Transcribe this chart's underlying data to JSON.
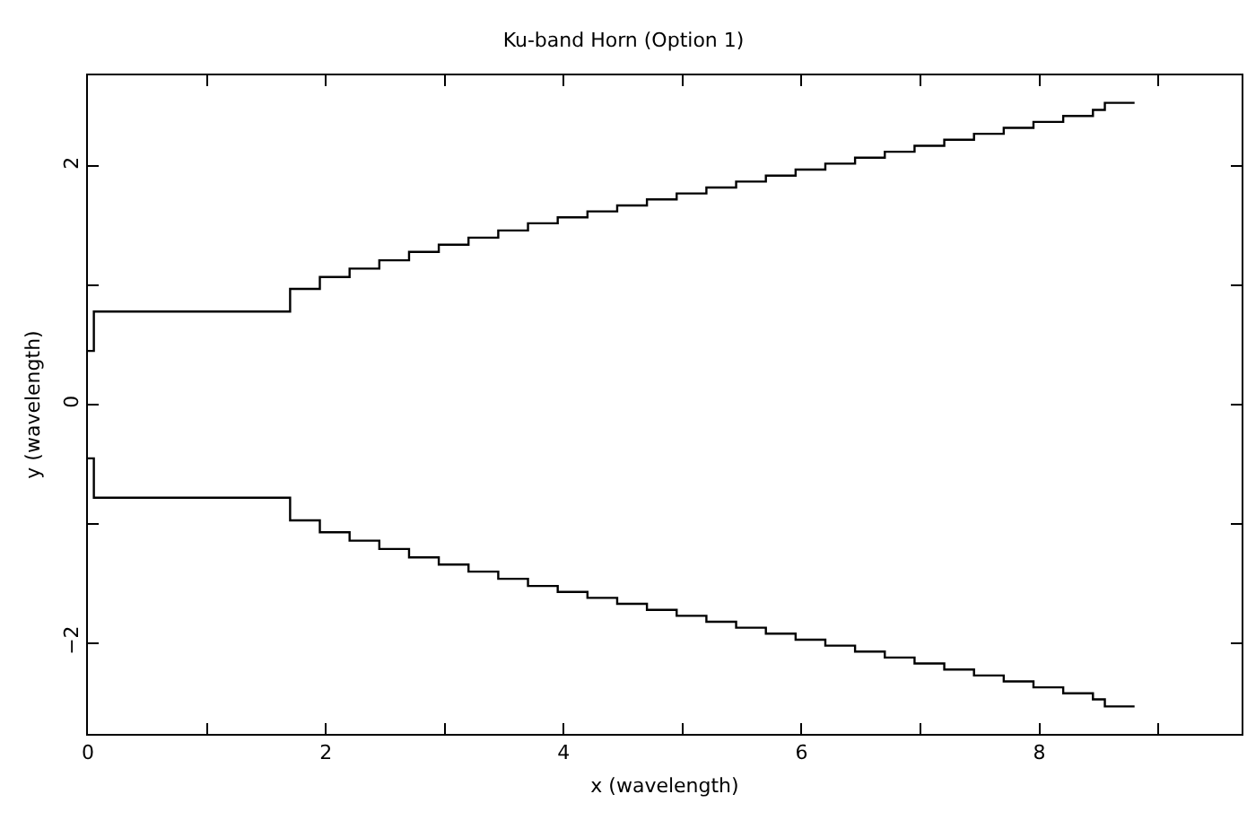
{
  "chart_data": {
    "type": "step",
    "title": "Ku-band Horn (Option 1)",
    "xlabel": "x (wavelength)",
    "ylabel": "y (wavelength)",
    "x": [
      0,
      0.05,
      1.7,
      1.95,
      2.2,
      2.45,
      2.7,
      2.95,
      3.2,
      3.45,
      3.7,
      3.95,
      4.2,
      4.45,
      4.7,
      4.95,
      5.2,
      5.45,
      5.7,
      5.95,
      6.2,
      6.45,
      6.7,
      6.95,
      7.2,
      7.45,
      7.7,
      7.95,
      8.2,
      8.45,
      8.55,
      8.8
    ],
    "series": [
      {
        "color": "#000000",
        "values": [
          0.45,
          0.78,
          0.97,
          1.07,
          1.14,
          1.21,
          1.28,
          1.34,
          1.4,
          1.46,
          1.52,
          1.57,
          1.62,
          1.67,
          1.72,
          1.77,
          1.82,
          1.87,
          1.92,
          1.97,
          2.02,
          2.07,
          2.12,
          2.17,
          2.22,
          2.27,
          2.32,
          2.37,
          2.42,
          2.47,
          2.53,
          2.53
        ]
      },
      {
        "color": "#000000",
        "values": [
          -0.45,
          -0.78,
          -0.97,
          -1.07,
          -1.14,
          -1.21,
          -1.28,
          -1.34,
          -1.4,
          -1.46,
          -1.52,
          -1.57,
          -1.62,
          -1.67,
          -1.72,
          -1.77,
          -1.82,
          -1.87,
          -1.92,
          -1.97,
          -2.02,
          -2.07,
          -2.12,
          -2.17,
          -2.22,
          -2.27,
          -2.32,
          -2.37,
          -2.42,
          -2.47,
          -2.53,
          -2.53
        ]
      }
    ],
    "xlim": [
      0,
      9.7
    ],
    "xticks": [
      0,
      {
        "value": 1,
        "label": null
      },
      2,
      {
        "value": 3,
        "label": null
      },
      4,
      {
        "value": 5,
        "label": null
      },
      6,
      {
        "value": 7,
        "label": null
      },
      8,
      {
        "value": 9,
        "label": null
      }
    ],
    "ylim": [
      -2.76,
      2.76
    ],
    "yticks": [
      {
        "value": -2,
        "label": "−2"
      },
      {
        "value": -1,
        "label": null
      },
      0,
      {
        "value": 1,
        "label": null
      },
      2
    ],
    "grid": false
  }
}
